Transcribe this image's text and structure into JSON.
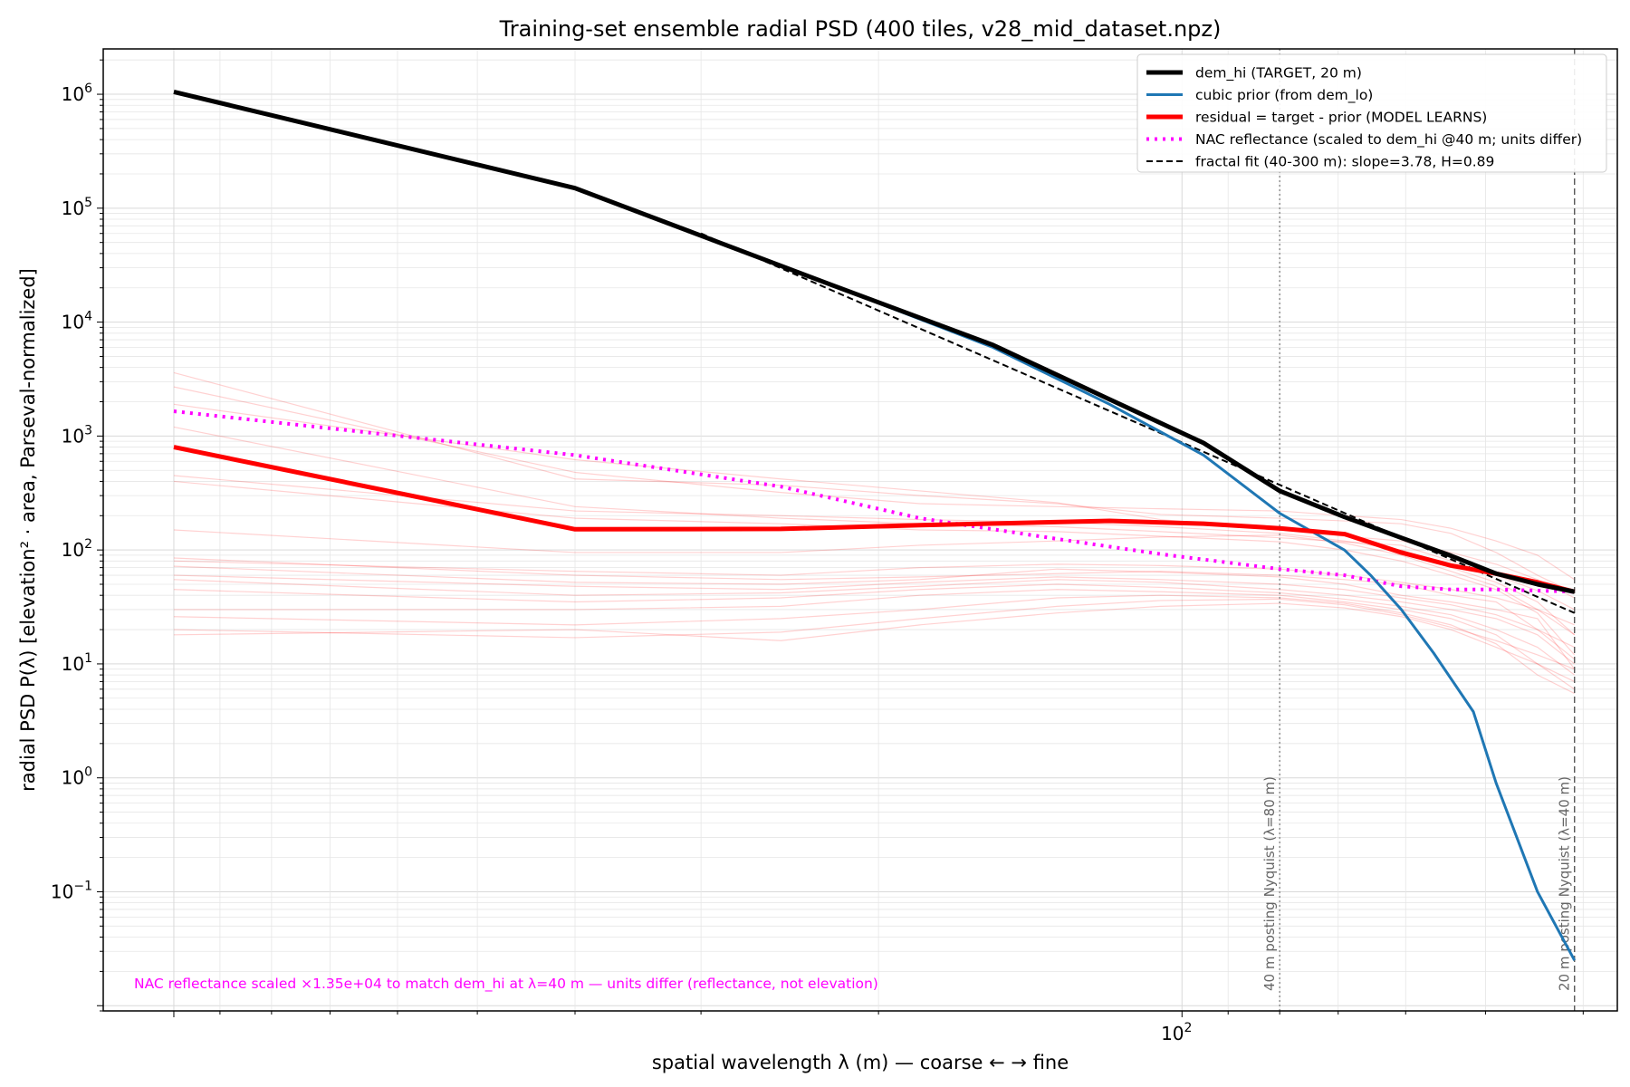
{
  "chart_data": {
    "type": "line",
    "title": "Training-set ensemble radial PSD (400 tiles, v28_mid_dataset.npz)",
    "xlabel": "spatial wavelength λ (m) — coarse ← → fine",
    "ylabel": "radial PSD  P(λ)  [elevation² · area, Parseval-normalized]",
    "xscale": "log",
    "yscale": "log",
    "x_inverted": true,
    "xlim": [
      1175,
      37
    ],
    "ylim": [
      0.009,
      2500000
    ],
    "grid": true,
    "x_tick_labels": [
      {
        "value": 100,
        "label": "10^2"
      }
    ],
    "y_tick_labels": [
      {
        "value": 0.1,
        "base": "10",
        "exp": "−1"
      },
      {
        "value": 1,
        "base": "10",
        "exp": "0"
      },
      {
        "value": 10,
        "base": "10",
        "exp": "1"
      },
      {
        "value": 100,
        "base": "10",
        "exp": "2"
      },
      {
        "value": 1000,
        "base": "10",
        "exp": "3"
      },
      {
        "value": 10000,
        "base": "10",
        "exp": "4"
      },
      {
        "value": 100000,
        "base": "10",
        "exp": "5"
      },
      {
        "value": 1000000,
        "base": "10",
        "exp": "6"
      }
    ],
    "series": [
      {
        "name": "dem_hi (TARGET, 20 m)",
        "color": "#000000",
        "style": "solid-thick",
        "x": [
          1000,
          400,
          222,
          154,
          118,
          95.2,
          80,
          69,
          60.6,
          54.1,
          48.8,
          44.4,
          40.8
        ],
        "y": [
          1050000,
          150000,
          21000,
          6300,
          2100,
          870,
          330,
          195,
          128,
          89,
          62,
          50,
          43
        ]
      },
      {
        "name": "cubic prior (from dem_lo)",
        "color": "#1f77b4",
        "style": "solid",
        "x": [
          222,
          154,
          118,
          95.2,
          80,
          69,
          65,
          60.6,
          56.3,
          51.4,
          48.8,
          44.4,
          40.8
        ],
        "y": [
          21000,
          6000,
          1900,
          680,
          210,
          100,
          60,
          30,
          12.5,
          3.8,
          0.9,
          0.1,
          0.025
        ]
      },
      {
        "name": "residual = target - prior (MODEL LEARNS)",
        "color": "#ff0000",
        "style": "solid-thick",
        "x": [
          1000,
          400,
          250,
          182,
          118,
          95.2,
          80,
          69,
          60.6,
          54.1,
          48.8,
          44.4,
          40.8
        ],
        "y": [
          800,
          152,
          153,
          165,
          180,
          170,
          155,
          138,
          95,
          73,
          62,
          52,
          43
        ]
      },
      {
        "name": "NAC reflectance (scaled to dem_hi @40 m; units differ)",
        "color": "#ff00ff",
        "style": "dotted",
        "x": [
          1000,
          400,
          250,
          182,
          133,
          105,
          80,
          69,
          60.6,
          54.1,
          48.8,
          44.4,
          40.8
        ],
        "y": [
          1650,
          680,
          360,
          190,
          125,
          92,
          68,
          60,
          48,
          45,
          45,
          44,
          43
        ]
      },
      {
        "name": "fractal fit (40-300 m): slope=3.78, H=0.89",
        "color": "#000000",
        "style": "dashed",
        "x": [
          300,
          40.8
        ],
        "y": [
          60000,
          28
        ]
      }
    ],
    "ensemble_tiles": {
      "color": "#ff0000",
      "opacity": 0.18,
      "x": [
        1000,
        400,
        250,
        182,
        133,
        105,
        80,
        69,
        60.6,
        54.1,
        48.8,
        44.4,
        40.8
      ],
      "curves": [
        [
          3600,
          420,
          370,
          300,
          255,
          205,
          190,
          180,
          170,
          140,
          95,
          60,
          42
        ],
        [
          2700,
          480,
          320,
          255,
          240,
          230,
          220,
          200,
          185,
          155,
          120,
          90,
          55
        ],
        [
          1900,
          620,
          420,
          330,
          260,
          185,
          150,
          132,
          120,
          95,
          75,
          55,
          38
        ],
        [
          1200,
          240,
          190,
          170,
          160,
          145,
          128,
          118,
          110,
          80,
          60,
          44,
          30
        ],
        [
          450,
          220,
          200,
          185,
          175,
          160,
          140,
          120,
          100,
          70,
          52,
          35,
          18
        ],
        [
          400,
          190,
          170,
          150,
          145,
          132,
          118,
          100,
          80,
          60,
          45,
          28,
          12
        ],
        [
          150,
          95,
          95,
          110,
          120,
          130,
          135,
          115,
          90,
          65,
          48,
          30,
          22
        ],
        [
          85,
          60,
          55,
          58,
          62,
          65,
          60,
          55,
          50,
          40,
          35,
          20,
          11
        ],
        [
          80,
          65,
          60,
          70,
          75,
          73,
          68,
          60,
          52,
          45,
          38,
          30,
          18
        ],
        [
          72,
          52,
          50,
          55,
          68,
          64,
          58,
          50,
          40,
          35,
          30,
          25,
          9
        ],
        [
          60,
          48,
          45,
          52,
          58,
          55,
          50,
          45,
          38,
          33,
          27,
          20,
          14
        ],
        [
          55,
          40,
          42,
          48,
          55,
          52,
          45,
          40,
          35,
          30,
          25,
          18,
          10
        ],
        [
          45,
          35,
          38,
          45,
          50,
          47,
          42,
          37,
          32,
          27,
          20,
          14,
          8
        ],
        [
          30,
          30,
          32,
          40,
          45,
          43,
          40,
          35,
          30,
          25,
          18,
          10,
          6
        ],
        [
          26,
          22,
          25,
          30,
          38,
          40,
          38,
          34,
          28,
          22,
          15,
          8,
          5.5
        ],
        [
          20,
          17,
          19,
          25,
          32,
          36,
          37,
          33,
          27,
          21,
          16,
          12,
          9
        ],
        [
          18,
          20,
          16,
          22,
          28,
          32,
          34,
          31,
          26,
          20,
          14,
          10,
          7
        ]
      ]
    },
    "vertical_lines": [
      {
        "x": 80,
        "label": "40 m posting Nyquist (λ=80 m)",
        "style": "dotted",
        "color": "#888888"
      },
      {
        "x": 40.8,
        "label": "20 m posting Nyquist (λ=40 m)",
        "style": "dashed",
        "color": "#555555"
      }
    ],
    "annotation": {
      "text": "NAC reflectance scaled ×1.35e+04 to match dem_hi at λ=40 m — units differ (reflectance, not elevation)",
      "color": "#ff00ff"
    },
    "legend_placement": "top-right"
  }
}
